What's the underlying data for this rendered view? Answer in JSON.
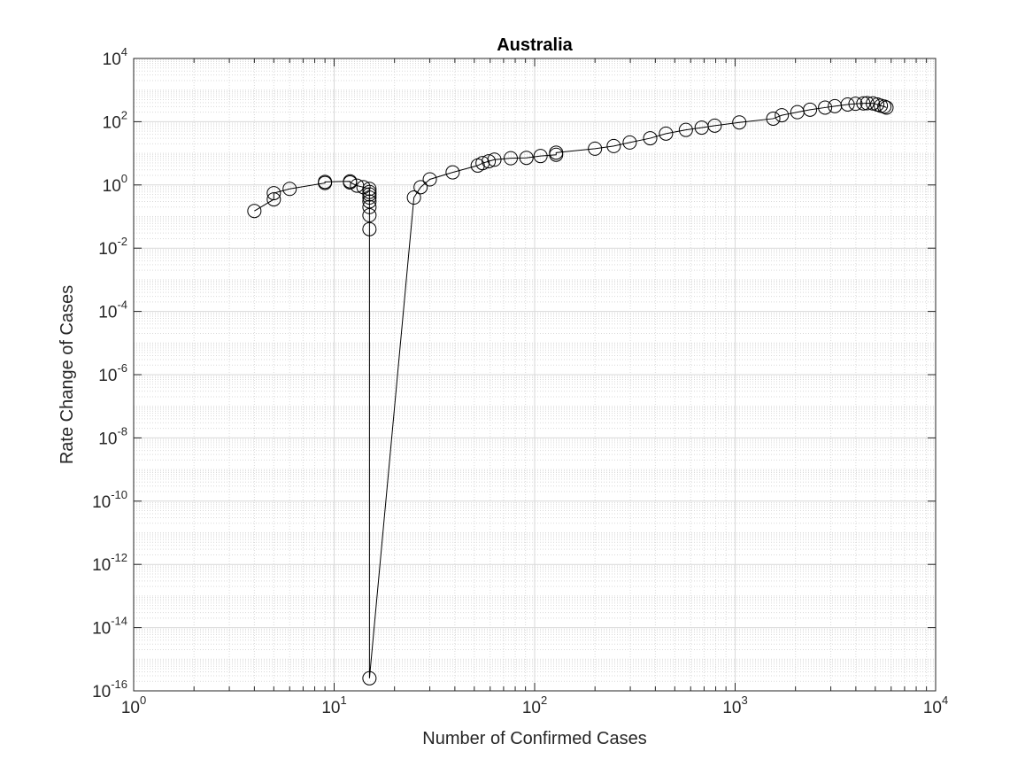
{
  "chart_data": {
    "type": "scatter",
    "title": "Australia",
    "xlabel": "Number of Confirmed Cases",
    "ylabel": "Rate Change of Cases",
    "xscale": "log",
    "yscale": "log",
    "xlim": [
      1,
      10000
    ],
    "ylim": [
      1e-16,
      10000
    ],
    "grid": "on (major and minor)",
    "legend": "none",
    "marker": "open circle",
    "line": "solid",
    "colors": {
      "line": "#000000",
      "marker": "#000000",
      "grid": "#d9d9d9",
      "axes": "#262626"
    },
    "x_ticks": [
      {
        "base": "10",
        "exp": "0",
        "value": 1
      },
      {
        "base": "10",
        "exp": "1",
        "value": 10
      },
      {
        "base": "10",
        "exp": "2",
        "value": 100
      },
      {
        "base": "10",
        "exp": "3",
        "value": 1000
      },
      {
        "base": "10",
        "exp": "4",
        "value": 10000
      }
    ],
    "y_ticks": [
      {
        "base": "10",
        "exp": "-16",
        "value": 1e-16
      },
      {
        "base": "10",
        "exp": "-14",
        "value": 1e-14
      },
      {
        "base": "10",
        "exp": "-12",
        "value": 1e-12
      },
      {
        "base": "10",
        "exp": "-10",
        "value": 1e-10
      },
      {
        "base": "10",
        "exp": "-8",
        "value": 1e-08
      },
      {
        "base": "10",
        "exp": "-6",
        "value": 1e-06
      },
      {
        "base": "10",
        "exp": "-4",
        "value": 0.0001
      },
      {
        "base": "10",
        "exp": "-2",
        "value": 0.01
      },
      {
        "base": "10",
        "exp": "0",
        "value": 1
      },
      {
        "base": "10",
        "exp": "2",
        "value": 100
      },
      {
        "base": "10",
        "exp": "4",
        "value": 10000
      }
    ],
    "x": [
      4,
      5,
      5,
      6,
      9,
      9,
      12,
      12,
      13,
      14,
      15,
      15,
      15,
      15,
      15,
      15,
      15,
      15,
      15,
      25,
      27,
      30,
      39,
      52,
      55,
      59,
      63,
      76,
      91,
      107,
      128,
      128,
      200,
      248,
      298,
      377,
      452,
      568,
      681,
      791,
      1049,
      1549,
      1709,
      2044,
      2364,
      2810,
      3143,
      3640,
      3984,
      4361,
      4559,
      4862,
      5116,
      5330,
      5550,
      5687
    ],
    "y": [
      0.15,
      0.35,
      0.55,
      0.75,
      1.15,
      1.25,
      1.3,
      1.2,
      0.95,
      0.85,
      0.75,
      0.6,
      0.5,
      0.4,
      0.3,
      0.2,
      0.11,
      0.04,
      2.5e-16,
      0.4,
      0.85,
      1.5,
      2.5,
      4.1,
      4.9,
      5.6,
      6.3,
      7.0,
      7.2,
      8.2,
      9.0,
      10.5,
      14,
      17,
      22,
      30,
      42,
      55,
      65,
      75,
      95,
      125,
      160,
      200,
      240,
      280,
      310,
      350,
      370,
      380,
      385,
      380,
      350,
      320,
      300,
      280
    ]
  }
}
